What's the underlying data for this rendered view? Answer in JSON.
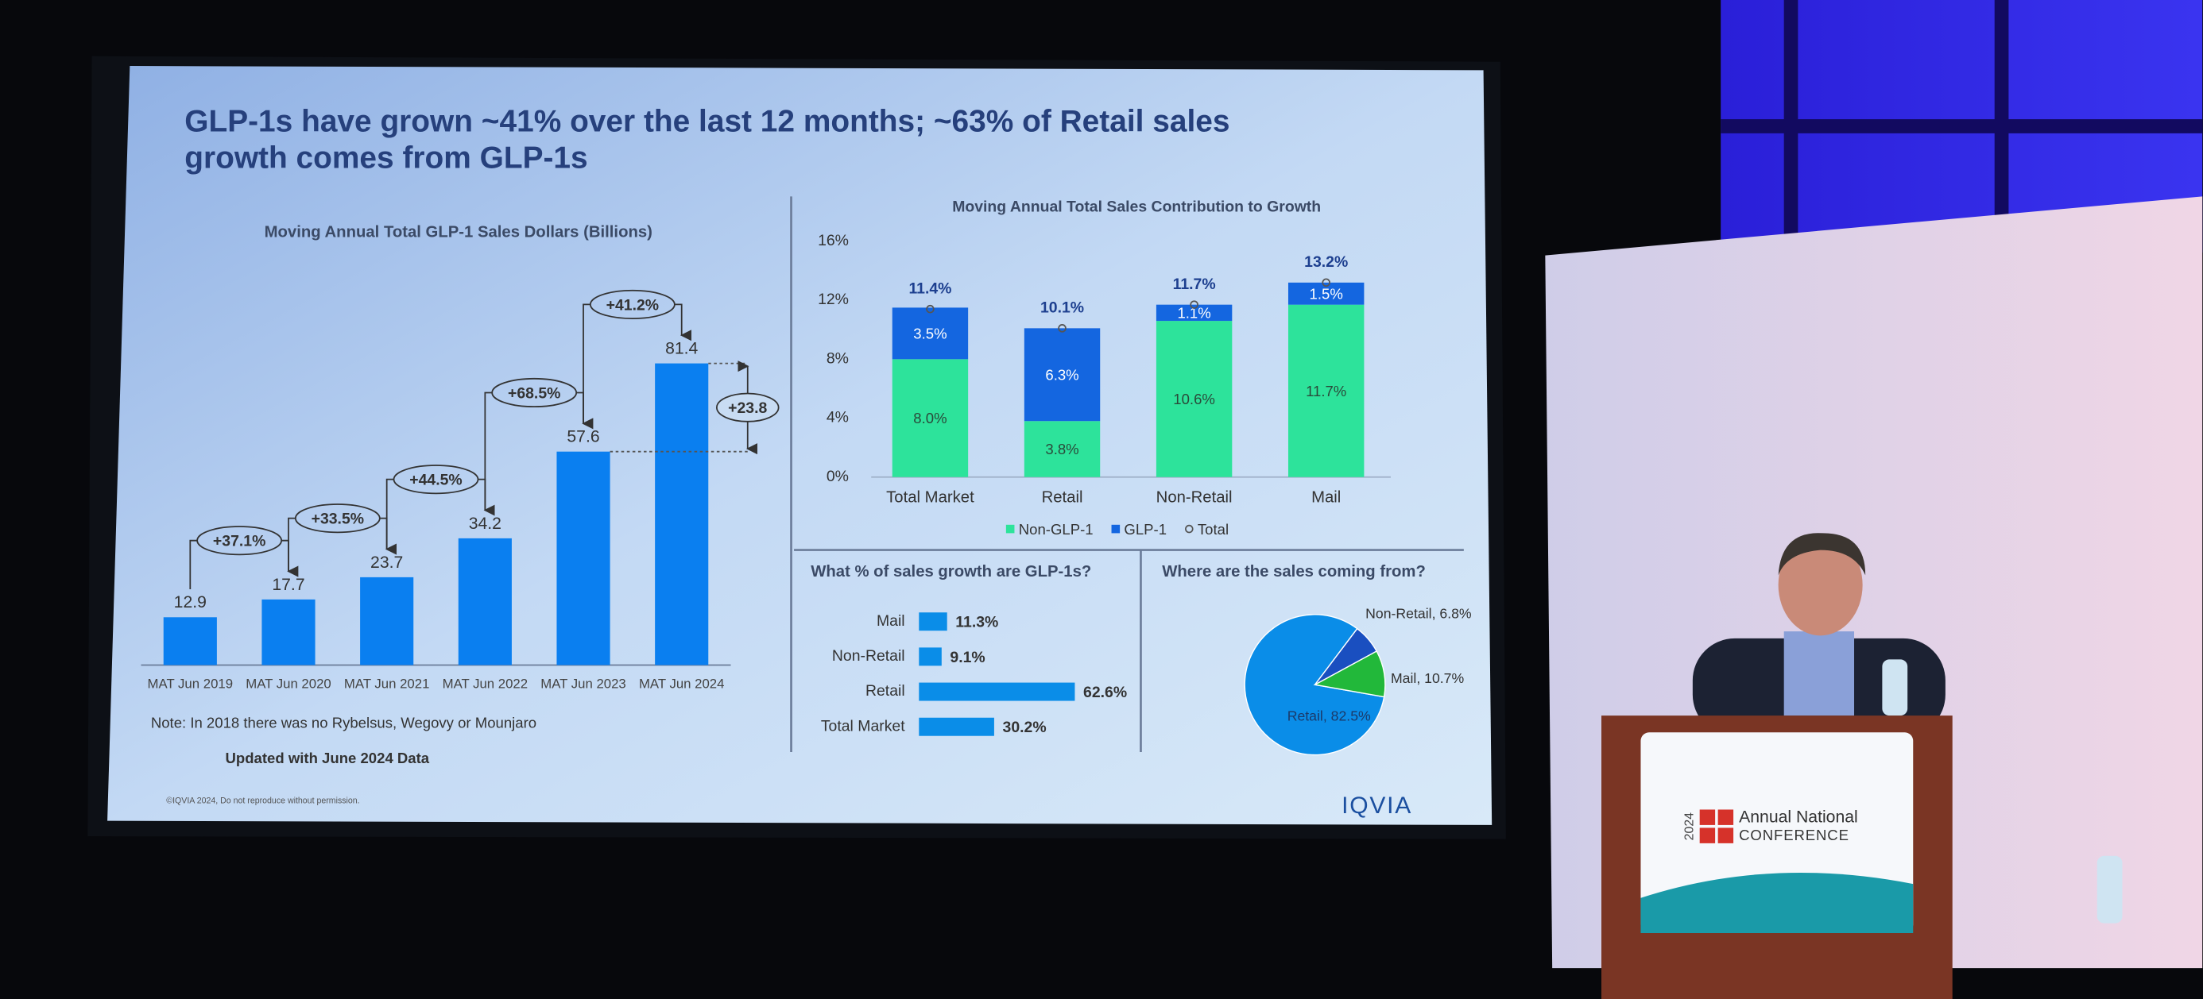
{
  "slide": {
    "title_lines": [
      "GLP-1s have grown ~41% over the last 12 months; ~63% of Retail sales",
      "growth comes from GLP-1s"
    ],
    "copyright": "©IQVIA 2024, Do not reproduce without permission.",
    "logo": "IQVIA"
  },
  "chart_data": [
    {
      "type": "bar",
      "title": "Moving Annual Total GLP-1 Sales Dollars (Billions)",
      "categories": [
        "MAT Jun 2019",
        "MAT Jun 2020",
        "MAT Jun 2021",
        "MAT Jun 2022",
        "MAT Jun 2023",
        "MAT Jun 2024"
      ],
      "values": [
        12.9,
        17.7,
        23.7,
        34.2,
        57.6,
        81.4
      ],
      "color": "#0a7ff0",
      "growth_labels": [
        "+37.1%",
        "+33.5%",
        "+44.5%",
        "+68.5%",
        "+41.2%"
      ],
      "difference_label": "+23.8",
      "note": "Note:  In 2018 there was no Rybelsus, Wegovy or Mounjaro",
      "update_note": "Updated with June 2024 Data"
    },
    {
      "type": "stacked_bar",
      "title": "Moving Annual Total Sales Contribution to Growth",
      "categories": [
        "Total Market",
        "Retail",
        "Non-Retail",
        "Mail"
      ],
      "series": [
        {
          "name": "Non-GLP-1",
          "color": "#2de39b",
          "values": [
            8.0,
            3.8,
            10.6,
            11.7
          ],
          "value_labels": [
            "8.0%",
            "3.8%",
            "10.6%",
            "11.7%"
          ]
        },
        {
          "name": "GLP-1",
          "color": "#1466e0",
          "values": [
            3.5,
            6.3,
            1.1,
            1.5
          ],
          "value_labels": [
            "3.5%",
            "6.3%",
            "1.1%",
            "1.5%"
          ]
        },
        {
          "name": "Total",
          "color": "#1d3f8f",
          "marker": "circle",
          "values": [
            11.4,
            10.1,
            11.7,
            13.2
          ],
          "value_labels": [
            "11.4%",
            "10.1%",
            "11.7%",
            "13.2%"
          ]
        }
      ],
      "ylim": [
        0,
        16
      ],
      "yticks": [
        {
          "value": 0,
          "label": "0%"
        },
        {
          "value": 4,
          "label": "4%"
        },
        {
          "value": 8,
          "label": "8%"
        },
        {
          "value": 12,
          "label": "12%"
        },
        {
          "value": 16,
          "label": "16%"
        }
      ]
    },
    {
      "type": "bar",
      "horizontal": true,
      "title": "What % of sales growth are GLP-1s?",
      "categories": [
        "Mail",
        "Non-Retail",
        "Retail",
        "Total Market"
      ],
      "values": [
        11.3,
        9.1,
        62.6,
        30.2
      ],
      "value_labels": [
        "11.3%",
        "9.1%",
        "62.6%",
        "30.2%"
      ],
      "color": "#0a8de8"
    },
    {
      "type": "pie",
      "title": "Where are the sales coming from?",
      "values": [
        82.5,
        6.8,
        10.7
      ],
      "value_labels": [
        "Retail, 82.5%",
        "Non-Retail, 6.8%",
        "Mail, 10.7%"
      ],
      "colors": [
        "#0a8de8",
        "#1a4fc0",
        "#22b83a"
      ]
    }
  ],
  "podium": {
    "year": "2024",
    "line1": "Annual National",
    "line2": "CONFERENCE"
  }
}
